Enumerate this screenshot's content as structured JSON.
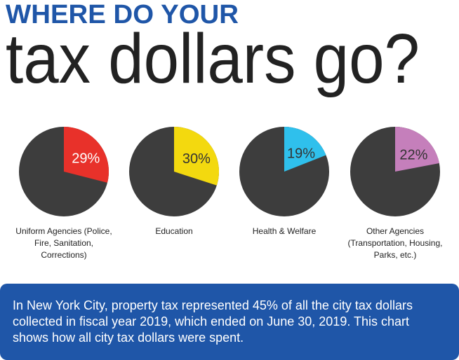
{
  "header": {
    "title": "WHERE DO YOUR",
    "subtitle": "tax dollars go?"
  },
  "chart_data": [
    {
      "type": "pie",
      "categories": [
        "Uniform Agencies (Police, Fire, Sanitation, Corrections)"
      ],
      "values": [
        29
      ],
      "value_labels": [
        "29%"
      ],
      "color": "#e8312a",
      "label_color": "#ffffff"
    },
    {
      "type": "pie",
      "categories": [
        "Education"
      ],
      "values": [
        30
      ],
      "value_labels": [
        "30%"
      ],
      "color": "#f3d90f",
      "label_color": "#333333"
    },
    {
      "type": "pie",
      "categories": [
        "Health & Welfare"
      ],
      "values": [
        19
      ],
      "value_labels": [
        "19%"
      ],
      "color": "#2fc0ec",
      "label_color": "#333333"
    },
    {
      "type": "pie",
      "categories": [
        "Other Agencies (Transportation, Housing, Parks, etc.)"
      ],
      "values": [
        22
      ],
      "value_labels": [
        "22%"
      ],
      "color": "#c57fbb",
      "label_color": "#333333"
    }
  ],
  "note": "In New York City, property tax represented 45% of all the city tax dollars collected in fiscal year 2019, which ended on June 30, 2019. This chart shows how all city tax dollars were spent."
}
